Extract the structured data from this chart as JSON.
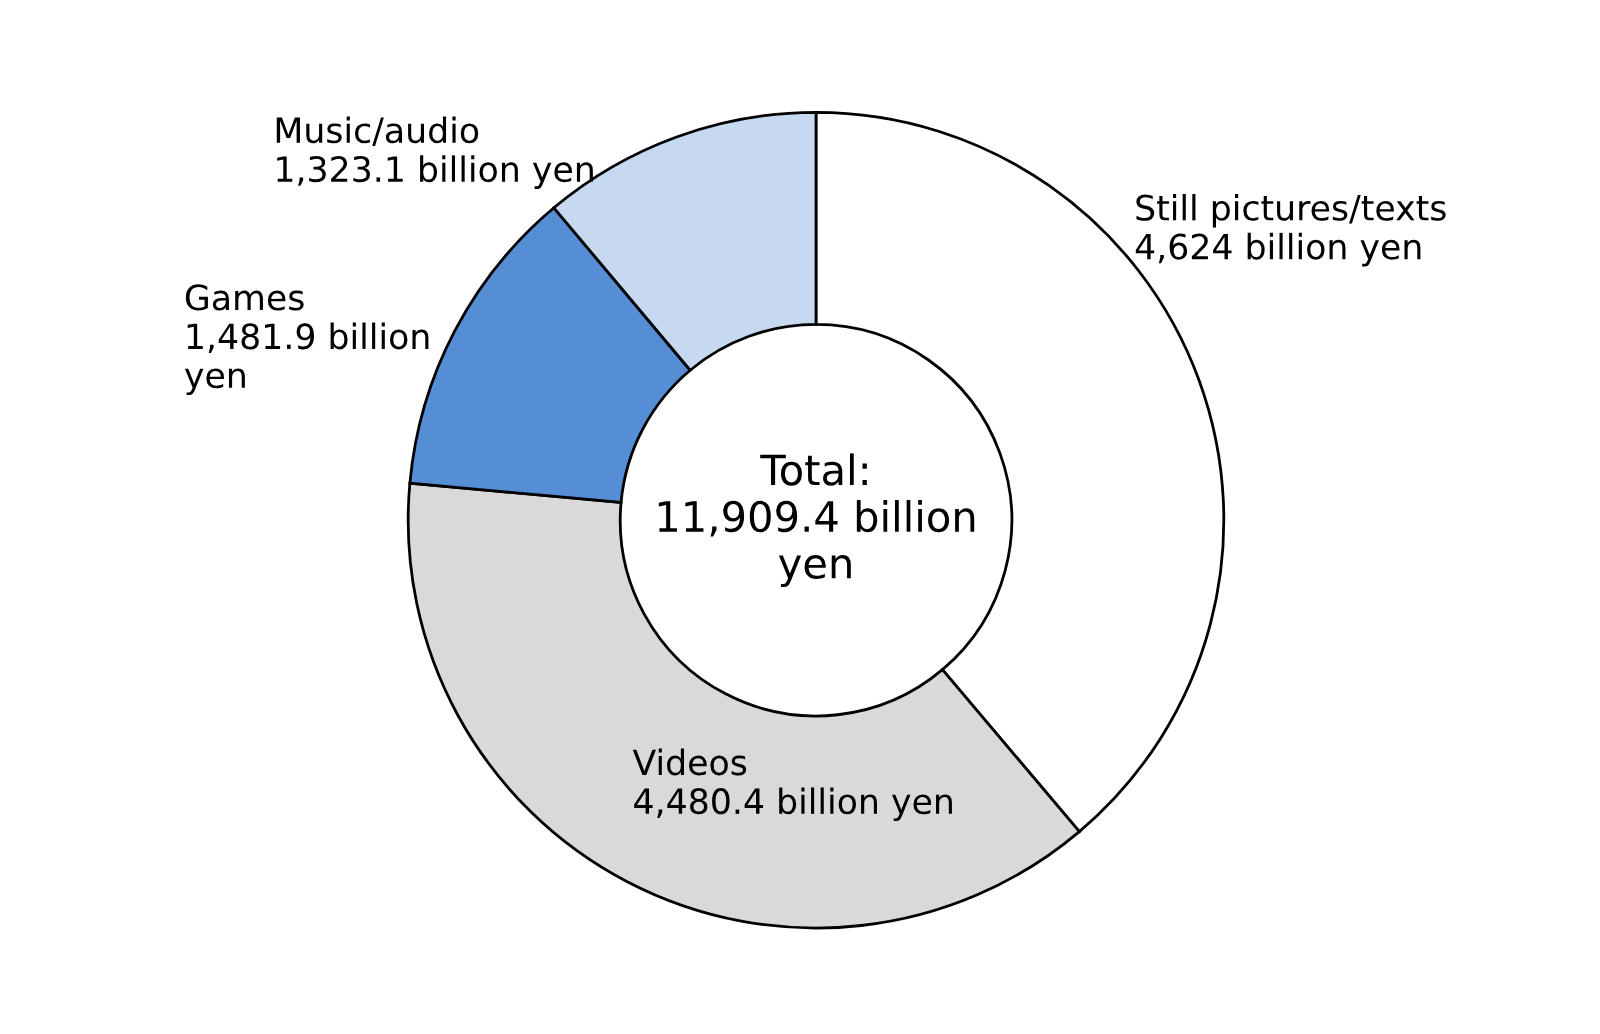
{
  "chart_data": {
    "type": "donut",
    "categories": [
      "Still pictures/texts",
      "Videos",
      "Games",
      "Music/audio"
    ],
    "values": [
      4624,
      4480.4,
      1481.9,
      1323.1
    ],
    "value_labels": [
      "4,624 billion yen",
      "4,480.4 billion yen",
      "1,481.9 billion\nyen",
      "1,323.1 billion yen"
    ],
    "colors": [
      "#ffffff",
      "#d9d9d9",
      "#558ed5",
      "#c6d9f1"
    ],
    "annotations": [
      "Total:\n11,909.4 billion\nyen"
    ],
    "legend": false
  }
}
